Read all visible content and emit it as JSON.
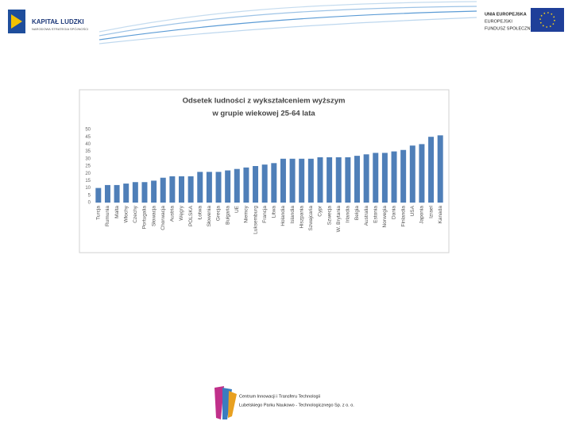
{
  "header": {
    "left_logo": [
      "KAPITAŁ LUDZKI",
      "NARODOWA STRATEGIA SPÓJNOŚCI"
    ],
    "right_logo": [
      "UNIA EUROPEJSKA",
      "EUROPEJSKI",
      "FUNDUSZ SPOŁECZNY"
    ]
  },
  "footer": [
    "Centrum Innowacji i Transferu Technologii",
    "Lubelskiego Parku Naukowo - Technologicznego Sp. z o. o."
  ],
  "chart_data": {
    "type": "bar",
    "title": [
      "Odsetek ludności z wykształceniem wyższym",
      "w grupie wiekowej 25-64 lata"
    ],
    "categories": [
      "Turcja",
      "Rumunia",
      "Malta",
      "Włochy",
      "Czechy",
      "Portugalia",
      "Słowacja",
      "Chorwacja",
      "Austria",
      "Węgry",
      "POLSKA",
      "Łotwa",
      "Słowenia",
      "Grecja",
      "Bułgaria",
      "UE",
      "Niemcy",
      "Luksemburg",
      "Francja",
      "Litwa",
      "Holandia",
      "Islandia",
      "Hiszpania",
      "Szwajcaria",
      "Cypr",
      "Szwecja",
      "W. Brytania",
      "Irlandia",
      "Belgia",
      "Australia",
      "Estonia",
      "Norwegia",
      "Dania",
      "Finlandia",
      "USA",
      "Japonia",
      "Izrael",
      "Kanada"
    ],
    "values": [
      10,
      12,
      12,
      13,
      14,
      14,
      15,
      17,
      18,
      18,
      18,
      21,
      21,
      21,
      22,
      23,
      24,
      25,
      26,
      27,
      30,
      30,
      30,
      30,
      31,
      31,
      31,
      31,
      32,
      33,
      34,
      34,
      35,
      36,
      39,
      40,
      45,
      46
    ],
    "color": "#4f7fb8",
    "ylim": [
      0,
      50
    ],
    "yticks": [
      0,
      5,
      10,
      15,
      20,
      25,
      30,
      35,
      40,
      45,
      50
    ],
    "grid": false
  }
}
